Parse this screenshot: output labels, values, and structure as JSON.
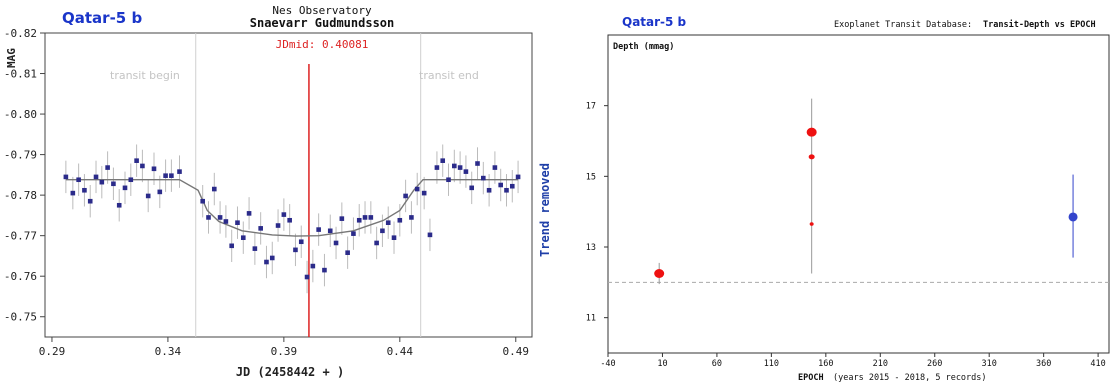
{
  "chart_data": [
    {
      "type": "scatter",
      "title": "Qatar-5 b",
      "observatory": "Nes Observatory",
      "observer": "Snaevarr Gudmundsson",
      "jdmid_label": "JDmid: 0.40081",
      "xlabel": "JD (2458442 + )",
      "ylabel": "MAG",
      "right_label": "Trend removed",
      "transit_begin_label": "transit begin",
      "transit_end_label": "transit end",
      "xlim": [
        0.287,
        0.497
      ],
      "ylim": [
        -0.82,
        -0.745
      ],
      "xticks": [
        0.29,
        0.34,
        0.39,
        0.44,
        0.49
      ],
      "xtick_labels": [
        "0.29",
        "0.34",
        "0.39",
        "0.44",
        "0.49"
      ],
      "yticks": [
        -0.82,
        -0.81,
        -0.8,
        -0.79,
        -0.78,
        -0.77,
        -0.76,
        -0.75
      ],
      "ytick_labels": [
        "-0.82",
        "-0.81",
        "-0.80",
        "-0.79",
        "-0.78",
        "-0.77",
        "-0.76",
        "-0.75"
      ],
      "transit_begin": 0.352,
      "transit_end": 0.449,
      "jdmid": 0.40081,
      "grid": false,
      "colors": {
        "points": "#2b2b8a",
        "jdmid": "#dd2222",
        "model": "#777777",
        "errorbars": "#bbbbbb",
        "title": "#1a35c9",
        "right_label": "#1f3fa8"
      },
      "points": [
        {
          "x": 0.296,
          "y": -0.7845,
          "e": 0.004
        },
        {
          "x": 0.299,
          "y": -0.7805,
          "e": 0.004
        },
        {
          "x": 0.3015,
          "y": -0.7838,
          "e": 0.004
        },
        {
          "x": 0.304,
          "y": -0.7812,
          "e": 0.004
        },
        {
          "x": 0.3065,
          "y": -0.7785,
          "e": 0.004
        },
        {
          "x": 0.309,
          "y": -0.7845,
          "e": 0.004
        },
        {
          "x": 0.3115,
          "y": -0.7832,
          "e": 0.004
        },
        {
          "x": 0.314,
          "y": -0.7868,
          "e": 0.004
        },
        {
          "x": 0.3165,
          "y": -0.7828,
          "e": 0.004
        },
        {
          "x": 0.319,
          "y": -0.7775,
          "e": 0.004
        },
        {
          "x": 0.3215,
          "y": -0.7818,
          "e": 0.004
        },
        {
          "x": 0.324,
          "y": -0.7838,
          "e": 0.004
        },
        {
          "x": 0.3265,
          "y": -0.7885,
          "e": 0.004
        },
        {
          "x": 0.329,
          "y": -0.7872,
          "e": 0.004
        },
        {
          "x": 0.3315,
          "y": -0.7798,
          "e": 0.004
        },
        {
          "x": 0.334,
          "y": -0.7865,
          "e": 0.004
        },
        {
          "x": 0.3365,
          "y": -0.7808,
          "e": 0.004
        },
        {
          "x": 0.339,
          "y": -0.7848,
          "e": 0.004
        },
        {
          "x": 0.3415,
          "y": -0.7848,
          "e": 0.004
        },
        {
          "x": 0.345,
          "y": -0.7858,
          "e": 0.004
        },
        {
          "x": 0.355,
          "y": -0.7785,
          "e": 0.004
        },
        {
          "x": 0.3575,
          "y": -0.7745,
          "e": 0.004
        },
        {
          "x": 0.36,
          "y": -0.7815,
          "e": 0.004
        },
        {
          "x": 0.3625,
          "y": -0.7745,
          "e": 0.004
        },
        {
          "x": 0.365,
          "y": -0.7735,
          "e": 0.004
        },
        {
          "x": 0.3675,
          "y": -0.7675,
          "e": 0.004
        },
        {
          "x": 0.37,
          "y": -0.7732,
          "e": 0.004
        },
        {
          "x": 0.3725,
          "y": -0.7695,
          "e": 0.004
        },
        {
          "x": 0.375,
          "y": -0.7755,
          "e": 0.004
        },
        {
          "x": 0.3775,
          "y": -0.7668,
          "e": 0.004
        },
        {
          "x": 0.38,
          "y": -0.7718,
          "e": 0.004
        },
        {
          "x": 0.3825,
          "y": -0.7635,
          "e": 0.004
        },
        {
          "x": 0.385,
          "y": -0.7645,
          "e": 0.004
        },
        {
          "x": 0.3875,
          "y": -0.7725,
          "e": 0.004
        },
        {
          "x": 0.39,
          "y": -0.7752,
          "e": 0.004
        },
        {
          "x": 0.3925,
          "y": -0.7738,
          "e": 0.004
        },
        {
          "x": 0.395,
          "y": -0.7665,
          "e": 0.004
        },
        {
          "x": 0.3975,
          "y": -0.7685,
          "e": 0.004
        },
        {
          "x": 0.4,
          "y": -0.7598,
          "e": 0.004
        },
        {
          "x": 0.4025,
          "y": -0.7625,
          "e": 0.004
        },
        {
          "x": 0.405,
          "y": -0.7715,
          "e": 0.004
        },
        {
          "x": 0.4075,
          "y": -0.7615,
          "e": 0.004
        },
        {
          "x": 0.41,
          "y": -0.7712,
          "e": 0.004
        },
        {
          "x": 0.4125,
          "y": -0.7682,
          "e": 0.004
        },
        {
          "x": 0.415,
          "y": -0.7742,
          "e": 0.004
        },
        {
          "x": 0.4175,
          "y": -0.7658,
          "e": 0.004
        },
        {
          "x": 0.42,
          "y": -0.7705,
          "e": 0.004
        },
        {
          "x": 0.4225,
          "y": -0.7738,
          "e": 0.004
        },
        {
          "x": 0.425,
          "y": -0.7745,
          "e": 0.004
        },
        {
          "x": 0.4275,
          "y": -0.7745,
          "e": 0.004
        },
        {
          "x": 0.43,
          "y": -0.7682,
          "e": 0.004
        },
        {
          "x": 0.4325,
          "y": -0.7712,
          "e": 0.004
        },
        {
          "x": 0.435,
          "y": -0.7732,
          "e": 0.004
        },
        {
          "x": 0.4375,
          "y": -0.7695,
          "e": 0.004
        },
        {
          "x": 0.44,
          "y": -0.7738,
          "e": 0.004
        },
        {
          "x": 0.4425,
          "y": -0.7798,
          "e": 0.004
        },
        {
          "x": 0.445,
          "y": -0.7745,
          "e": 0.004
        },
        {
          "x": 0.4475,
          "y": -0.7815,
          "e": 0.004
        },
        {
          "x": 0.4505,
          "y": -0.7805,
          "e": 0.004
        },
        {
          "x": 0.453,
          "y": -0.7702,
          "e": 0.004
        },
        {
          "x": 0.456,
          "y": -0.7868,
          "e": 0.004
        },
        {
          "x": 0.4585,
          "y": -0.7885,
          "e": 0.004
        },
        {
          "x": 0.461,
          "y": -0.7838,
          "e": 0.004
        },
        {
          "x": 0.4635,
          "y": -0.7872,
          "e": 0.004
        },
        {
          "x": 0.466,
          "y": -0.7868,
          "e": 0.004
        },
        {
          "x": 0.4685,
          "y": -0.7858,
          "e": 0.004
        },
        {
          "x": 0.471,
          "y": -0.7818,
          "e": 0.004
        },
        {
          "x": 0.4735,
          "y": -0.7878,
          "e": 0.004
        },
        {
          "x": 0.476,
          "y": -0.7842,
          "e": 0.004
        },
        {
          "x": 0.4785,
          "y": -0.7812,
          "e": 0.004
        },
        {
          "x": 0.481,
          "y": -0.7868,
          "e": 0.004
        },
        {
          "x": 0.4835,
          "y": -0.7825,
          "e": 0.004
        },
        {
          "x": 0.486,
          "y": -0.7812,
          "e": 0.004
        },
        {
          "x": 0.4885,
          "y": -0.7822,
          "e": 0.004
        },
        {
          "x": 0.491,
          "y": -0.7845,
          "e": 0.004
        }
      ],
      "model": [
        [
          0.296,
          -0.7838
        ],
        [
          0.345,
          -0.7838
        ],
        [
          0.353,
          -0.7812
        ],
        [
          0.357,
          -0.7762
        ],
        [
          0.362,
          -0.7735
        ],
        [
          0.372,
          -0.7712
        ],
        [
          0.385,
          -0.7702
        ],
        [
          0.395,
          -0.7699
        ],
        [
          0.405,
          -0.77
        ],
        [
          0.42,
          -0.7712
        ],
        [
          0.433,
          -0.7738
        ],
        [
          0.44,
          -0.7762
        ],
        [
          0.446,
          -0.7812
        ],
        [
          0.45,
          -0.7838
        ],
        [
          0.491,
          -0.7838
        ]
      ]
    },
    {
      "type": "scatter",
      "title": "Qatar-5 b",
      "database_label": "Exoplanet Transit Database:",
      "plot_title": "Transit-Depth vs EPOCH",
      "ylabel": "Depth (mmag)",
      "xlabel": "EPOCH",
      "xlabel_note": "(years 2015 - 2018, 5 records)",
      "xlim": [
        -40,
        420
      ],
      "ylim": [
        10,
        19
      ],
      "xticks": [
        -40,
        10,
        60,
        110,
        160,
        210,
        260,
        310,
        360,
        410
      ],
      "xtick_labels": [
        "-40",
        "10",
        "60",
        "110",
        "160",
        "210",
        "260",
        "310",
        "360",
        "410"
      ],
      "yticks": [
        11,
        13,
        15,
        17
      ],
      "ytick_labels": [
        "11",
        "13",
        "15",
        "17"
      ],
      "reference_depth": 12.0,
      "grid": false,
      "colors": {
        "red": "#ee1111",
        "blue": "#3344cc",
        "reference": "#aaaaaa",
        "title": "#1a35c9"
      },
      "points": [
        {
          "x": 7,
          "y": 12.25,
          "err": [
            11.95,
            12.55
          ],
          "color": "red",
          "size": "large"
        },
        {
          "x": 147,
          "y": 16.25,
          "err": [
            12.25,
            17.2
          ],
          "color": "red",
          "size": "large"
        },
        {
          "x": 147,
          "y": 15.55,
          "err": null,
          "color": "red",
          "size": "small"
        },
        {
          "x": 147,
          "y": 13.65,
          "err": null,
          "color": "red",
          "size": "tiny"
        },
        {
          "x": 387,
          "y": 13.85,
          "err": [
            12.7,
            15.05
          ],
          "color": "blue",
          "size": "medium"
        }
      ]
    }
  ]
}
